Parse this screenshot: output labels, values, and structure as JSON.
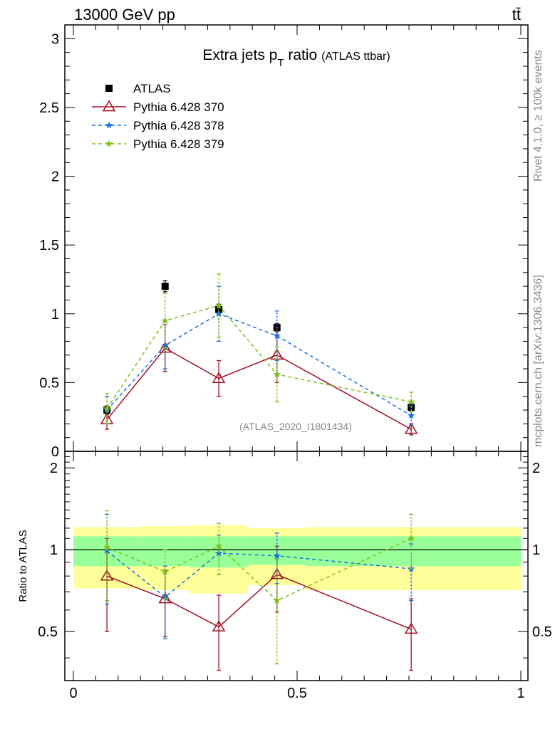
{
  "header": {
    "energy_label": "13000 GeV pp",
    "process_label": "tt̄"
  },
  "side_labels": {
    "rivet": "Rivet 4.1.0, ≥ 100k events",
    "mcplots": "mcplots.cern.ch [arXiv:1306.3436]"
  },
  "chart_data": {
    "type": "scatter",
    "title_main": "Extra jets p",
    "title_sub": "T",
    "title_main2": " ratio",
    "title_small": "(ATLAS ttbar)",
    "watermark": "(ATLAS_2020_I1801434)",
    "x": [
      0.075,
      0.205,
      0.325,
      0.455,
      0.755
    ],
    "xlim": [
      0,
      1
    ],
    "upper": {
      "ylim": [
        0,
        3.1
      ],
      "yticks": [
        0,
        0.5,
        1,
        1.5,
        2,
        2.5,
        3
      ],
      "ytick_labels": [
        "0",
        "0.5",
        "1",
        "1.5",
        "2",
        "2.5",
        "3"
      ]
    },
    "lower": {
      "ylabel": "Ratio to ATLAS",
      "ylim": [
        0.33,
        2.3
      ],
      "yticks": [
        0.5,
        1,
        2
      ],
      "ytick_labels": [
        "0.5",
        "1",
        "2"
      ],
      "band_edges": [
        0.0,
        0.15,
        0.26,
        0.39,
        0.52,
        1.0
      ],
      "band_green_lo": [
        0.87,
        0.87,
        0.86,
        0.88,
        0.87
      ],
      "band_green_hi": [
        1.12,
        1.12,
        1.12,
        1.12,
        1.12
      ],
      "band_yellow_lo": [
        0.72,
        0.71,
        0.69,
        0.74,
        0.71
      ],
      "band_yellow_hi": [
        1.21,
        1.22,
        1.23,
        1.2,
        1.21
      ]
    },
    "xticks": [
      0,
      0.5,
      1
    ],
    "xtick_labels": [
      "0",
      "0.5",
      "1"
    ],
    "series": [
      {
        "name": "ATLAS",
        "color": "#000000",
        "marker": "square",
        "dash": "",
        "values": [
          0.3,
          1.2,
          1.03,
          0.9,
          0.32
        ],
        "err": [
          0.03,
          0.04,
          0.04,
          0.03,
          0.03
        ],
        "ratio": [
          1,
          1,
          1,
          1,
          1
        ],
        "ratio_err": [
          0,
          0,
          0,
          0,
          0
        ]
      },
      {
        "name": "Pythia 6.428 370",
        "color": "#a01020",
        "marker": "triangle",
        "dash": "",
        "values": [
          0.23,
          0.75,
          0.53,
          0.7,
          0.16
        ],
        "err": [
          0.07,
          0.17,
          0.13,
          0.2,
          0.04
        ],
        "ratio": [
          0.8,
          0.66,
          0.52,
          0.81,
          0.51
        ],
        "ratio_err": [
          0.3,
          0.18,
          0.16,
          0.22,
          0.15
        ]
      },
      {
        "name": "Pythia 6.428 378",
        "color": "#1a6fdf",
        "marker": "star",
        "dash": "5,4",
        "values": [
          0.3,
          0.77,
          1.0,
          0.84,
          0.26
        ],
        "err": [
          0.1,
          0.17,
          0.2,
          0.18,
          0.07
        ],
        "ratio": [
          0.99,
          0.67,
          0.97,
          0.95,
          0.85
        ],
        "ratio_err": [
          0.36,
          0.2,
          0.16,
          0.2,
          0.2
        ]
      },
      {
        "name": "Pythia 6.428 379",
        "color": "#7fbf1a",
        "marker": "star",
        "dash": "5,4",
        "values": [
          0.31,
          0.95,
          1.06,
          0.56,
          0.36
        ],
        "err": [
          0.11,
          0.2,
          0.23,
          0.2,
          0.07
        ],
        "ratio": [
          1.02,
          0.83,
          1.03,
          0.65,
          1.1
        ],
        "ratio_err": [
          0.37,
          0.17,
          0.22,
          0.27,
          0.25
        ]
      }
    ]
  }
}
